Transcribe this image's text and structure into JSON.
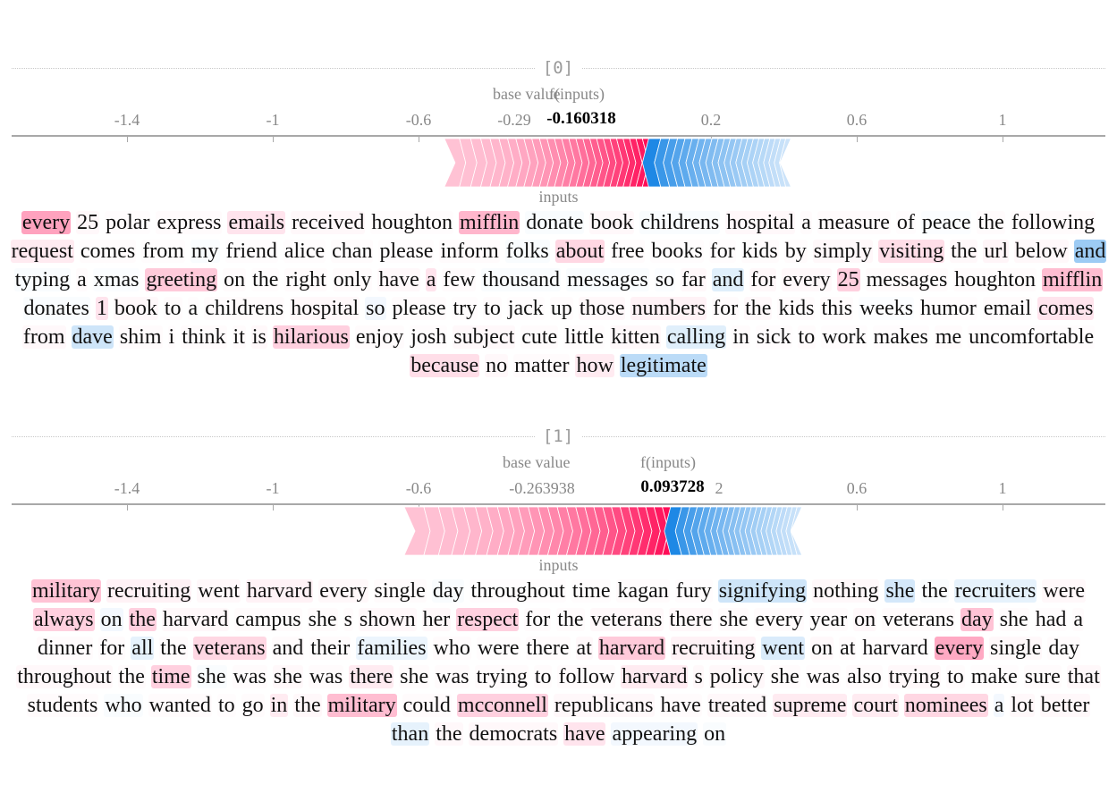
{
  "samples": [
    {
      "index_label": "[0]",
      "base_value_label": "base value",
      "f_inputs_label": "f(inputs)",
      "base_value_tick": "-0.29",
      "f_value": "-0.160318",
      "inputs_label": "inputs",
      "ticks": [
        "-1.4",
        "-1",
        "-0.6",
        "0.2",
        "0.6",
        "1"
      ],
      "force": {
        "pos_start": 0.03,
        "pos_end": -0.53,
        "neg_start": 0.03,
        "neg_end": 0.42
      },
      "tokens": [
        {
          "t": "every",
          "v": 0.7
        },
        {
          "t": "25",
          "v": 0.05
        },
        {
          "t": "polar",
          "v": 0.02
        },
        {
          "t": "express",
          "v": 0.03
        },
        {
          "t": "emails",
          "v": 0.2
        },
        {
          "t": "received",
          "v": 0.05
        },
        {
          "t": "houghton",
          "v": 0.02
        },
        {
          "t": "mifflin",
          "v": 0.55
        },
        {
          "t": "donate",
          "v": -0.05
        },
        {
          "t": "book",
          "v": 0.05
        },
        {
          "t": "childrens",
          "v": -0.05
        },
        {
          "t": "hospital",
          "v": 0.05
        },
        {
          "t": "a",
          "v": 0.03
        },
        {
          "t": "measure",
          "v": 0.03
        },
        {
          "t": "of",
          "v": 0.02
        },
        {
          "t": "peace",
          "v": -0.03
        },
        {
          "t": "the",
          "v": 0.03
        },
        {
          "t": "following",
          "v": 0.03
        },
        {
          "t": "request",
          "v": 0.15
        },
        {
          "t": "comes",
          "v": 0.03
        },
        {
          "t": "from",
          "v": 0.02
        },
        {
          "t": "my",
          "v": -0.05
        },
        {
          "t": "friend",
          "v": 0.02
        },
        {
          "t": "alice",
          "v": 0.02
        },
        {
          "t": "chan",
          "v": 0.03
        },
        {
          "t": "please",
          "v": 0.02
        },
        {
          "t": "inform",
          "v": 0.03
        },
        {
          "t": "folks",
          "v": -0.05
        },
        {
          "t": "about",
          "v": 0.3
        },
        {
          "t": "free",
          "v": 0.03
        },
        {
          "t": "books",
          "v": 0.02
        },
        {
          "t": "for",
          "v": 0.02
        },
        {
          "t": "kids",
          "v": 0.03
        },
        {
          "t": "by",
          "v": 0.03
        },
        {
          "t": "simply",
          "v": 0.05
        },
        {
          "t": "visiting",
          "v": 0.25
        },
        {
          "t": "the",
          "v": 0.05
        },
        {
          "t": "url",
          "v": 0.08
        },
        {
          "t": "below",
          "v": 0.05
        },
        {
          "t": "and",
          "v": -0.8
        },
        {
          "t": "typing",
          "v": -0.05
        },
        {
          "t": "a",
          "v": 0.03
        },
        {
          "t": "xmas",
          "v": -0.03
        },
        {
          "t": "greeting",
          "v": 0.4
        },
        {
          "t": "on",
          "v": 0.03
        },
        {
          "t": "the",
          "v": 0.02
        },
        {
          "t": "right",
          "v": 0.03
        },
        {
          "t": "only",
          "v": 0.03
        },
        {
          "t": "have",
          "v": 0.05
        },
        {
          "t": "a",
          "v": 0.2
        },
        {
          "t": "few",
          "v": 0.03
        },
        {
          "t": "thousand",
          "v": -0.05
        },
        {
          "t": "messages",
          "v": -0.05
        },
        {
          "t": "so",
          "v": -0.03
        },
        {
          "t": "far",
          "v": 0.05
        },
        {
          "t": "and",
          "v": -0.25
        },
        {
          "t": "for",
          "v": 0.05
        },
        {
          "t": "every",
          "v": 0.05
        },
        {
          "t": "25",
          "v": 0.35
        },
        {
          "t": "messages",
          "v": 0.03
        },
        {
          "t": "houghton",
          "v": 0.03
        },
        {
          "t": "mifflin",
          "v": 0.5
        },
        {
          "t": "donates",
          "v": -0.05
        },
        {
          "t": "1",
          "v": 0.2
        },
        {
          "t": "book",
          "v": 0.05
        },
        {
          "t": "to",
          "v": 0.03
        },
        {
          "t": "a",
          "v": 0.02
        },
        {
          "t": "childrens",
          "v": 0.03
        },
        {
          "t": "hospital",
          "v": 0.05
        },
        {
          "t": "so",
          "v": -0.1
        },
        {
          "t": "please",
          "v": 0.03
        },
        {
          "t": "try",
          "v": 0.02
        },
        {
          "t": "to",
          "v": 0.03
        },
        {
          "t": "jack",
          "v": 0.02
        },
        {
          "t": "up",
          "v": 0.03
        },
        {
          "t": "those",
          "v": 0.05
        },
        {
          "t": "numbers",
          "v": 0.1
        },
        {
          "t": "for",
          "v": 0.03
        },
        {
          "t": "the",
          "v": 0.05
        },
        {
          "t": "kids",
          "v": 0.03
        },
        {
          "t": "this",
          "v": 0.03
        },
        {
          "t": "weeks",
          "v": -0.03
        },
        {
          "t": "humor",
          "v": 0.02
        },
        {
          "t": "email",
          "v": 0.03
        },
        {
          "t": "comes",
          "v": 0.2
        },
        {
          "t": "from",
          "v": 0.05
        },
        {
          "t": "dave",
          "v": -0.4
        },
        {
          "t": "shim",
          "v": 0.03
        },
        {
          "t": "i",
          "v": 0.02
        },
        {
          "t": "think",
          "v": 0.03
        },
        {
          "t": "it",
          "v": 0.03
        },
        {
          "t": "is",
          "v": 0.05
        },
        {
          "t": "hilarious",
          "v": 0.35
        },
        {
          "t": "enjoy",
          "v": 0.03
        },
        {
          "t": "josh",
          "v": 0.02
        },
        {
          "t": "subject",
          "v": 0.05
        },
        {
          "t": "cute",
          "v": 0.03
        },
        {
          "t": "little",
          "v": 0.02
        },
        {
          "t": "kitten",
          "v": 0.05
        },
        {
          "t": "calling",
          "v": -0.25
        },
        {
          "t": "in",
          "v": 0.03
        },
        {
          "t": "sick",
          "v": 0.02
        },
        {
          "t": "to",
          "v": 0.03
        },
        {
          "t": "work",
          "v": 0.02
        },
        {
          "t": "makes",
          "v": 0.02
        },
        {
          "t": "me",
          "v": 0.03
        },
        {
          "t": "uncomfortable",
          "v": 0.02
        },
        {
          "t": "because",
          "v": 0.25
        },
        {
          "t": "no",
          "v": 0.05
        },
        {
          "t": "matter",
          "v": 0.03
        },
        {
          "t": "how",
          "v": 0.15
        },
        {
          "t": "legitimate",
          "v": -0.55
        }
      ]
    },
    {
      "index_label": "[1]",
      "base_value_label": "base value",
      "f_inputs_label": "f(inputs)",
      "base_value_tick": "-0.263938",
      "f_value": "0.093728",
      "f_value_trail": "2",
      "inputs_label": "inputs",
      "ticks": [
        "-1.4",
        "-1",
        "-0.6",
        "0.6",
        "1"
      ],
      "force": {
        "pos_start": 0.09,
        "pos_end": -0.64,
        "neg_start": 0.09,
        "neg_end": 0.45
      },
      "tokens": [
        {
          "t": "military",
          "v": 0.45
        },
        {
          "t": "recruiting",
          "v": 0.1
        },
        {
          "t": "went",
          "v": 0.05
        },
        {
          "t": "harvard",
          "v": 0.1
        },
        {
          "t": "every",
          "v": 0.05
        },
        {
          "t": "single",
          "v": 0.03
        },
        {
          "t": "day",
          "v": -0.05
        },
        {
          "t": "throughout",
          "v": 0.02
        },
        {
          "t": "time",
          "v": 0.02
        },
        {
          "t": "kagan",
          "v": 0.03
        },
        {
          "t": "fury",
          "v": 0.02
        },
        {
          "t": "signifying",
          "v": -0.4
        },
        {
          "t": "nothing",
          "v": 0.05
        },
        {
          "t": "she",
          "v": -0.35
        },
        {
          "t": "the",
          "v": -0.05
        },
        {
          "t": "recruiters",
          "v": -0.2
        },
        {
          "t": "were",
          "v": 0.05
        },
        {
          "t": "always",
          "v": 0.35
        },
        {
          "t": "on",
          "v": -0.1
        },
        {
          "t": "the",
          "v": 0.35
        },
        {
          "t": "harvard",
          "v": 0.05
        },
        {
          "t": "campus",
          "v": 0.03
        },
        {
          "t": "she",
          "v": 0.03
        },
        {
          "t": "s",
          "v": 0.03
        },
        {
          "t": "shown",
          "v": 0.05
        },
        {
          "t": "her",
          "v": 0.05
        },
        {
          "t": "respect",
          "v": 0.35
        },
        {
          "t": "for",
          "v": 0.03
        },
        {
          "t": "the",
          "v": 0.03
        },
        {
          "t": "veterans",
          "v": 0.05
        },
        {
          "t": "there",
          "v": 0.05
        },
        {
          "t": "she",
          "v": 0.03
        },
        {
          "t": "every",
          "v": 0.03
        },
        {
          "t": "year",
          "v": 0.03
        },
        {
          "t": "on",
          "v": 0.05
        },
        {
          "t": "veterans",
          "v": 0.03
        },
        {
          "t": "day",
          "v": 0.45
        },
        {
          "t": "she",
          "v": 0.03
        },
        {
          "t": "had",
          "v": 0.02
        },
        {
          "t": "a",
          "v": 0.03
        },
        {
          "t": "dinner",
          "v": 0.03
        },
        {
          "t": "for",
          "v": 0.03
        },
        {
          "t": "all",
          "v": -0.2
        },
        {
          "t": "the",
          "v": 0.03
        },
        {
          "t": "veterans",
          "v": 0.3
        },
        {
          "t": "and",
          "v": 0.03
        },
        {
          "t": "their",
          "v": 0.03
        },
        {
          "t": "families",
          "v": -0.15
        },
        {
          "t": "who",
          "v": 0.03
        },
        {
          "t": "were",
          "v": 0.02
        },
        {
          "t": "there",
          "v": 0.03
        },
        {
          "t": "at",
          "v": 0.05
        },
        {
          "t": "harvard",
          "v": 0.4
        },
        {
          "t": "recruiting",
          "v": 0.1
        },
        {
          "t": "went",
          "v": -0.3
        },
        {
          "t": "on",
          "v": 0.05
        },
        {
          "t": "at",
          "v": 0.03
        },
        {
          "t": "harvard",
          "v": 0.02
        },
        {
          "t": "every",
          "v": 0.65
        },
        {
          "t": "single",
          "v": 0.05
        },
        {
          "t": "day",
          "v": 0.03
        },
        {
          "t": "throughout",
          "v": 0.05
        },
        {
          "t": "the",
          "v": 0.03
        },
        {
          "t": "time",
          "v": 0.35
        },
        {
          "t": "she",
          "v": -0.05
        },
        {
          "t": "was",
          "v": 0.03
        },
        {
          "t": "she",
          "v": 0.05
        },
        {
          "t": "was",
          "v": 0.03
        },
        {
          "t": "there",
          "v": 0.15
        },
        {
          "t": "she",
          "v": 0.03
        },
        {
          "t": "was",
          "v": 0.03
        },
        {
          "t": "trying",
          "v": 0.03
        },
        {
          "t": "to",
          "v": 0.03
        },
        {
          "t": "follow",
          "v": 0.03
        },
        {
          "t": "harvard",
          "v": 0.15
        },
        {
          "t": "s",
          "v": 0.05
        },
        {
          "t": "policy",
          "v": 0.05
        },
        {
          "t": "she",
          "v": 0.03
        },
        {
          "t": "was",
          "v": 0.02
        },
        {
          "t": "also",
          "v": 0.03
        },
        {
          "t": "trying",
          "v": 0.05
        },
        {
          "t": "to",
          "v": 0.03
        },
        {
          "t": "make",
          "v": 0.02
        },
        {
          "t": "sure",
          "v": 0.03
        },
        {
          "t": "that",
          "v": 0.05
        },
        {
          "t": "students",
          "v": 0.03
        },
        {
          "t": "who",
          "v": -0.05
        },
        {
          "t": "wanted",
          "v": 0.03
        },
        {
          "t": "to",
          "v": 0.02
        },
        {
          "t": "go",
          "v": 0.03
        },
        {
          "t": "in",
          "v": 0.15
        },
        {
          "t": "the",
          "v": 0.05
        },
        {
          "t": "military",
          "v": 0.5
        },
        {
          "t": "could",
          "v": 0.03
        },
        {
          "t": "mcconnell",
          "v": 0.35
        },
        {
          "t": "republicans",
          "v": 0.05
        },
        {
          "t": "have",
          "v": 0.03
        },
        {
          "t": "treated",
          "v": 0.05
        },
        {
          "t": "supreme",
          "v": 0.15
        },
        {
          "t": "court",
          "v": 0.15
        },
        {
          "t": "nominees",
          "v": 0.3
        },
        {
          "t": "a",
          "v": -0.1
        },
        {
          "t": "lot",
          "v": 0.05
        },
        {
          "t": "better",
          "v": 0.05
        },
        {
          "t": "than",
          "v": -0.2
        },
        {
          "t": "the",
          "v": 0.05
        },
        {
          "t": "democrats",
          "v": 0.05
        },
        {
          "t": "have",
          "v": 0.2
        },
        {
          "t": "appearing",
          "v": -0.1
        },
        {
          "t": "on",
          "v": -0.05
        }
      ]
    }
  ],
  "colors": {
    "positive": "#ff0d57",
    "negative": "#1e88e5",
    "positive_light": "#ffc3d5",
    "negative_light": "#d1e6fa"
  }
}
